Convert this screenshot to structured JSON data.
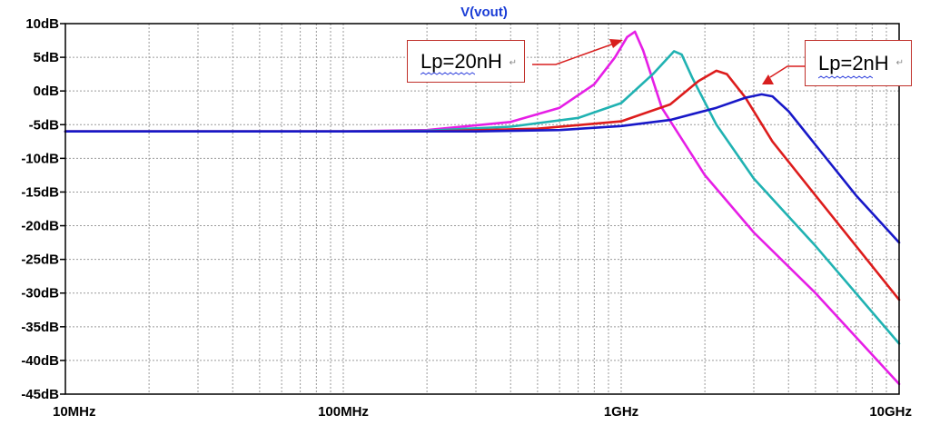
{
  "chart_data": {
    "type": "line",
    "title": "V(vout)",
    "xscale": "log",
    "xlim": [
      10000000,
      10000000000
    ],
    "ylim": [
      -45,
      10
    ],
    "x_tick_labels": [
      "10MHz",
      "100MHz",
      "1GHz",
      "10GHz"
    ],
    "y_tick_labels": [
      "10dB",
      "5dB",
      "0dB",
      "-5dB",
      "-10dB",
      "-15dB",
      "-20dB",
      "-25dB",
      "-30dB",
      "-35dB",
      "-40dB",
      "-45dB"
    ],
    "grid": true,
    "series": [
      {
        "color": "#e61ee6",
        "x": [
          10000000,
          100000000,
          200000000,
          400000000,
          600000000,
          800000000,
          950000000,
          1050000000,
          1120000000,
          1200000000,
          1400000000,
          2000000000,
          3000000000,
          5000000000,
          10000000000
        ],
        "y": [
          -6,
          -6,
          -5.8,
          -4.6,
          -2.5,
          1.0,
          5.0,
          8.0,
          8.8,
          6.0,
          -2.5,
          -12.5,
          -21,
          -30,
          -43.5
        ]
      },
      {
        "color": "#20b2b2",
        "x": [
          10000000,
          100000000,
          200000000,
          400000000,
          700000000,
          1000000000,
          1300000000,
          1550000000,
          1650000000,
          1800000000,
          2200000000,
          3000000000,
          5000000000,
          10000000000
        ],
        "y": [
          -6,
          -6,
          -5.9,
          -5.3,
          -4.0,
          -1.8,
          2.5,
          5.9,
          5.4,
          2.0,
          -5.0,
          -13.0,
          -23,
          -37.5
        ]
      },
      {
        "color": "#dd1c1c",
        "x": [
          10000000,
          200000000,
          500000000,
          1000000000,
          1500000000,
          1900000000,
          2200000000,
          2400000000,
          2800000000,
          3500000000,
          5000000000,
          10000000000
        ],
        "y": [
          -6,
          -6,
          -5.6,
          -4.5,
          -2.0,
          1.5,
          3.0,
          2.5,
          -1.0,
          -7.5,
          -15.5,
          -31
        ]
      },
      {
        "color": "#1818c8",
        "x": [
          10000000,
          300000000,
          600000000,
          1000000000,
          1500000000,
          2200000000,
          2800000000,
          3200000000,
          3500000000,
          4000000000,
          5000000000,
          7000000000,
          10000000000
        ],
        "y": [
          -6,
          -6,
          -5.8,
          -5.2,
          -4.3,
          -2.5,
          -1.0,
          -0.5,
          -0.8,
          -3.0,
          -8.0,
          -15.5,
          -22.5
        ]
      }
    ],
    "annotations": [
      {
        "text": "Lp=20nH"
      },
      {
        "text": "Lp=2nH"
      }
    ]
  }
}
